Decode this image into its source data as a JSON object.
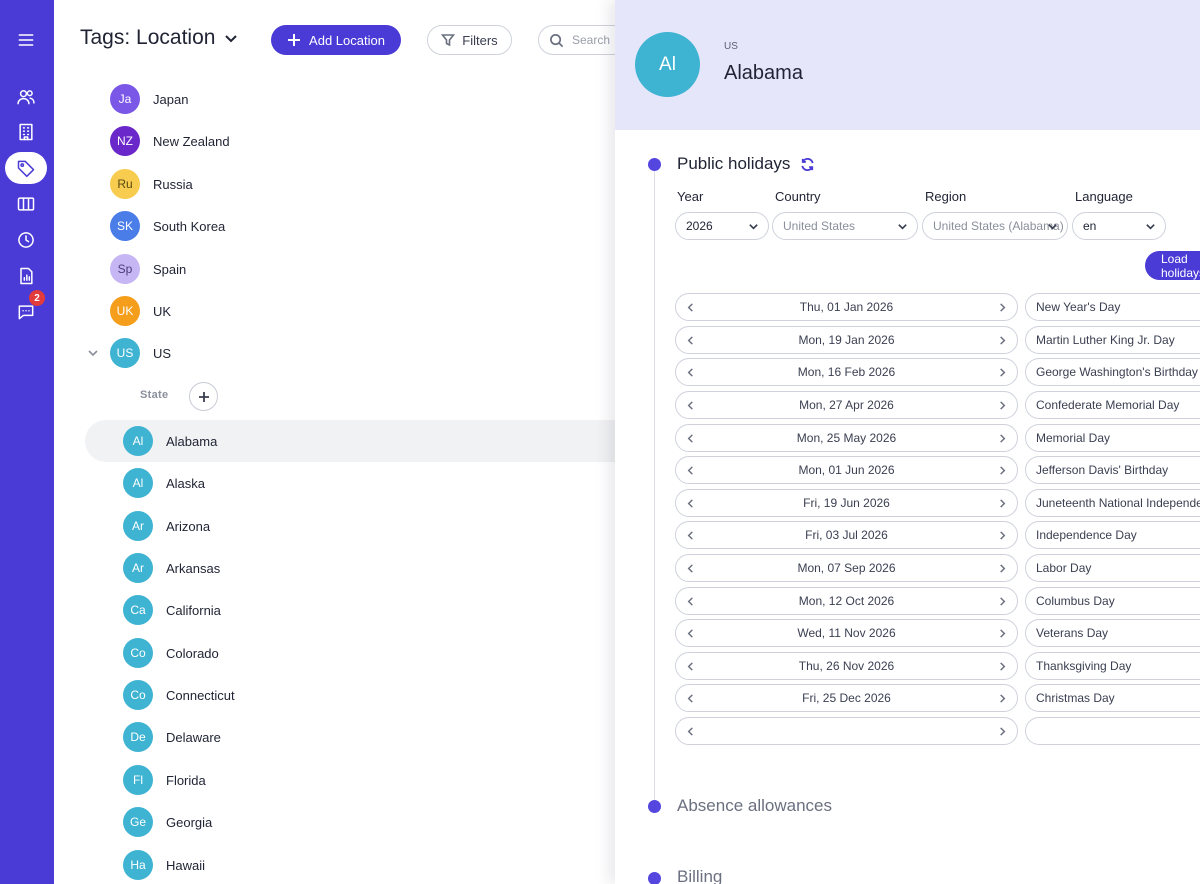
{
  "sidebar": {
    "items": [
      {
        "icon": "menu-icon"
      },
      {
        "icon": "users-icon"
      },
      {
        "icon": "building-icon"
      },
      {
        "icon": "tag-icon",
        "active": true
      },
      {
        "icon": "columns-icon"
      },
      {
        "icon": "clock-icon"
      },
      {
        "icon": "report-icon"
      },
      {
        "icon": "chat-icon",
        "badge": "2"
      }
    ]
  },
  "header": {
    "title": "Tags: Location",
    "add_label": "Add Location",
    "filters_label": "Filters",
    "search_placeholder": "Search"
  },
  "locations": [
    {
      "initials": "Ja",
      "name": "Japan",
      "color": "#7b57e8"
    },
    {
      "initials": "NZ",
      "name": "New Zealand",
      "color": "#6a27c9"
    },
    {
      "initials": "Ru",
      "name": "Russia",
      "color": "#f7cc4f",
      "text_color": "#5a4a10"
    },
    {
      "initials": "SK",
      "name": "South Korea",
      "color": "#4a7de8"
    },
    {
      "initials": "Sp",
      "name": "Spain",
      "color": "#c6b6f3",
      "text_color": "#4a3e7a"
    },
    {
      "initials": "UK",
      "name": "UK",
      "color": "#f59e1b"
    },
    {
      "initials": "US",
      "name": "US",
      "color": "#3fb3d2"
    }
  ],
  "state_label": "State",
  "states": [
    {
      "initials": "Al",
      "name": "Alabama"
    },
    {
      "initials": "Al",
      "name": "Alaska"
    },
    {
      "initials": "Ar",
      "name": "Arizona"
    },
    {
      "initials": "Ar",
      "name": "Arkansas"
    },
    {
      "initials": "Ca",
      "name": "California"
    },
    {
      "initials": "Co",
      "name": "Colorado"
    },
    {
      "initials": "Co",
      "name": "Connecticut"
    },
    {
      "initials": "De",
      "name": "Delaware"
    },
    {
      "initials": "Fl",
      "name": "Florida"
    },
    {
      "initials": "Ge",
      "name": "Georgia"
    },
    {
      "initials": "Ha",
      "name": "Hawaii"
    }
  ],
  "state_color": "#3fb3d2",
  "panel": {
    "initials": "Al",
    "parent": "US",
    "title": "Alabama",
    "public_holidays": {
      "title": "Public holidays",
      "year_label": "Year",
      "country_label": "Country",
      "region_label": "Region",
      "language_label": "Language",
      "year_value": "2026",
      "country_value": "United States",
      "region_value": "United States (Alabama)",
      "language_value": "en",
      "load_label": "Load holidays",
      "holidays": [
        {
          "date": "Thu, 01 Jan 2026",
          "name": "New Year's Day"
        },
        {
          "date": "Mon, 19 Jan 2026",
          "name": "Martin Luther King Jr. Day"
        },
        {
          "date": "Mon, 16 Feb 2026",
          "name": "George Washington's Birthday"
        },
        {
          "date": "Mon, 27 Apr 2026",
          "name": "Confederate Memorial Day"
        },
        {
          "date": "Mon, 25 May 2026",
          "name": "Memorial Day"
        },
        {
          "date": "Mon, 01 Jun 2026",
          "name": "Jefferson Davis' Birthday"
        },
        {
          "date": "Fri, 19 Jun 2026",
          "name": "Juneteenth National Independence Day"
        },
        {
          "date": "Fri, 03 Jul 2026",
          "name": "Independence Day"
        },
        {
          "date": "Mon, 07 Sep 2026",
          "name": "Labor Day"
        },
        {
          "date": "Mon, 12 Oct 2026",
          "name": "Columbus Day"
        },
        {
          "date": "Wed, 11 Nov 2026",
          "name": "Veterans Day"
        },
        {
          "date": "Thu, 26 Nov 2026",
          "name": "Thanksgiving Day"
        },
        {
          "date": "Fri, 25 Dec 2026",
          "name": "Christmas Day"
        },
        {
          "date": "",
          "name": ""
        }
      ]
    },
    "absence_title": "Absence allowances",
    "billing_title": "Billing"
  }
}
